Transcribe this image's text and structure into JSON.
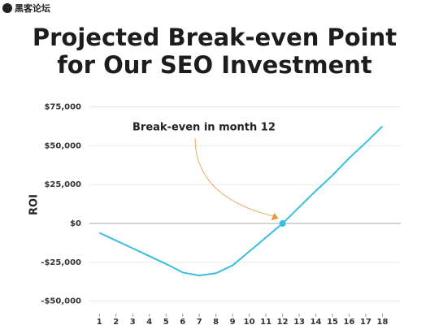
{
  "watermark": "黑客论坛",
  "chart_data": {
    "type": "line",
    "title": [
      "Projected Break-even Point",
      "for Our SEO Investment"
    ],
    "ylabel": "ROI",
    "x": [
      1,
      2,
      3,
      4,
      5,
      6,
      7,
      8,
      9,
      10,
      11,
      12,
      13,
      14,
      15,
      16,
      17,
      18
    ],
    "series": [
      {
        "name": "ROI",
        "color": "#3cbde0",
        "values": [
          -6000,
          -11000,
          -16000,
          -21000,
          -26000,
          -31500,
          -33500,
          -32000,
          -27000,
          -18000,
          -9000,
          0,
          10500,
          21000,
          31000,
          42000,
          52000,
          62500
        ]
      }
    ],
    "xlim": [
      0.4,
      19.1
    ],
    "xticks": [
      1,
      2,
      3,
      4,
      5,
      6,
      7,
      8,
      9,
      10,
      11,
      12,
      13,
      14,
      15,
      16,
      17,
      18
    ],
    "ylim": [
      -58000,
      80000
    ],
    "yticks": [
      {
        "value": -50000,
        "label": "-$50,000"
      },
      {
        "value": -25000,
        "label": "-$25,000"
      },
      {
        "value": 0,
        "label": "$0"
      },
      {
        "value": 25000,
        "label": "$25,000"
      },
      {
        "value": 50000,
        "label": "$50,000"
      },
      {
        "value": 75000,
        "label": "$75,000"
      }
    ],
    "grid": true,
    "annotation": {
      "text": "Break-even in month 12",
      "x": 12,
      "y": 0,
      "color": "#e89a3c"
    }
  }
}
